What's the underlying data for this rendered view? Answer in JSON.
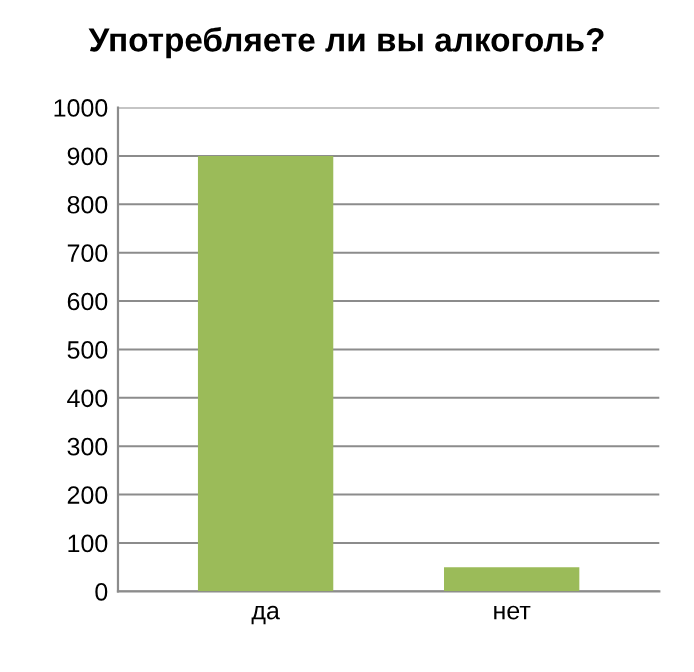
{
  "chart_data": {
    "type": "bar",
    "title": "Употребляете ли вы алкоголь?",
    "categories": [
      "да",
      "нет"
    ],
    "values": [
      900,
      50
    ],
    "color": "#9bbb59",
    "ylim": [
      0,
      1000
    ],
    "yticks": [
      0,
      100,
      200,
      300,
      400,
      500,
      600,
      700,
      800,
      900,
      1000
    ],
    "grid": "y",
    "legend": false
  }
}
